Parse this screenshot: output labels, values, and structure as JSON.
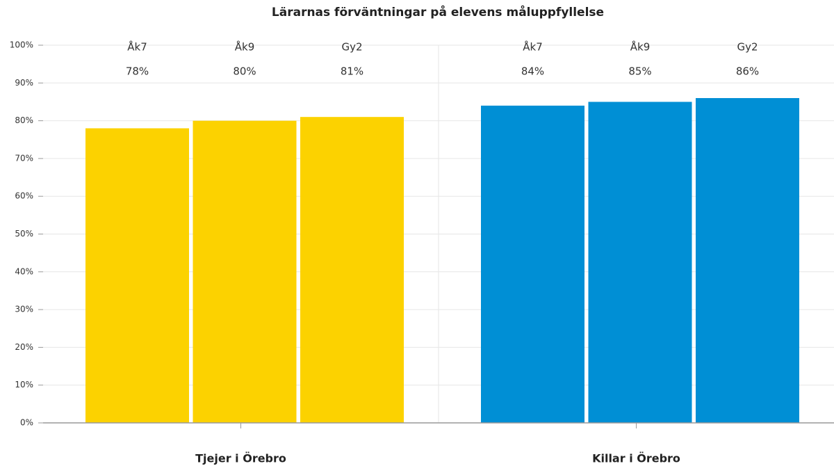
{
  "chart_data": {
    "type": "bar",
    "title": "Lärarnas förväntningar på elevens måluppfyllelse",
    "groups": [
      {
        "name": "Tjejer i Örebro",
        "color": "#fcd200",
        "categories": [
          "Åk7",
          "Åk9",
          "Gy2"
        ],
        "values": [
          78,
          80,
          81
        ],
        "value_labels": [
          "78%",
          "80%",
          "81%"
        ]
      },
      {
        "name": "Killar i Örebro",
        "color": "#008fd5",
        "categories": [
          "Åk7",
          "Åk9",
          "Gy2"
        ],
        "values": [
          84,
          85,
          86
        ],
        "value_labels": [
          "84%",
          "85%",
          "86%"
        ]
      }
    ],
    "ylim": [
      0,
      100
    ],
    "yticks": [
      {
        "value": 0,
        "label": "0%"
      },
      {
        "value": 10,
        "label": "10%"
      },
      {
        "value": 20,
        "label": "20%"
      },
      {
        "value": 30,
        "label": "30%"
      },
      {
        "value": 40,
        "label": "40%"
      },
      {
        "value": 50,
        "label": "50%"
      },
      {
        "value": 60,
        "label": "60%"
      },
      {
        "value": 70,
        "label": "70%"
      },
      {
        "value": 80,
        "label": "80%"
      },
      {
        "value": 90,
        "label": "90%"
      },
      {
        "value": 100,
        "label": "100%"
      }
    ],
    "grid": true
  }
}
